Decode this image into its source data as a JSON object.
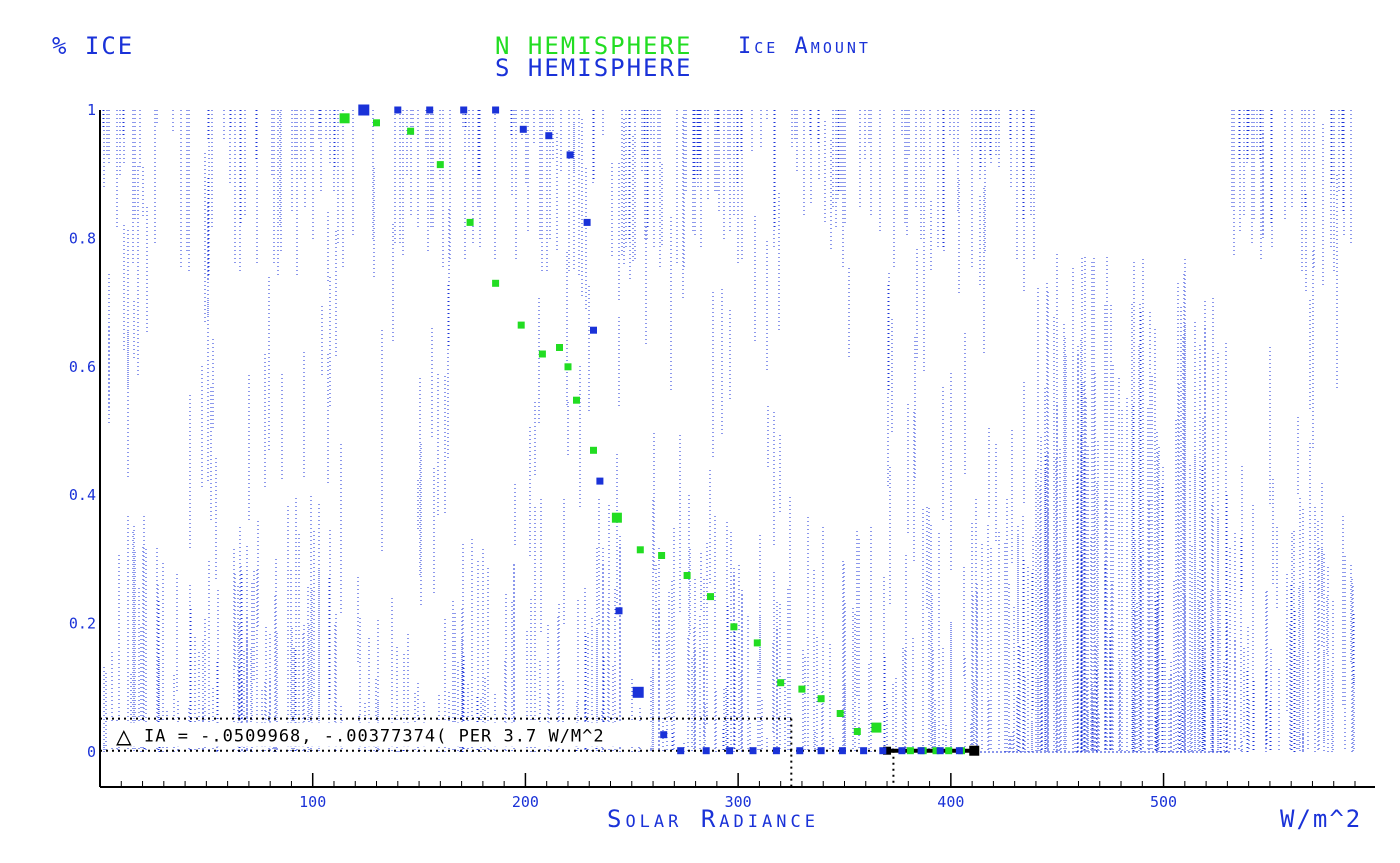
{
  "chart_data": {
    "type": "scatter",
    "title": "Ice Amount",
    "series_labels": [
      "N HEMISPHERE",
      "S HEMISPHERE"
    ],
    "ylabel": "% ICE",
    "xlabel": "Solar Radiance",
    "x_units": "W/m^2",
    "xlim": [
      0,
      590
    ],
    "ylim": [
      -0.05,
      1.0
    ],
    "x_ticks": [
      100,
      200,
      300,
      400,
      500
    ],
    "y_ticks": [
      0,
      0.2,
      0.4,
      0.6,
      0.8,
      1
    ],
    "y_tick_labels": [
      "0",
      "0.2",
      "0.4",
      "0.6",
      "0.8",
      "1"
    ],
    "colors": {
      "n_hemisphere": "#22dd22",
      "s_hemisphere": "#1a32d8",
      "axes": "#000000",
      "scatter": "#1a32d8"
    },
    "grid": false,
    "series": [
      {
        "name": "N HEMISPHERE",
        "color": "#22dd22",
        "points": [
          [
            115,
            0.987
          ],
          [
            130,
            0.98
          ],
          [
            146,
            0.967
          ],
          [
            160,
            0.915
          ],
          [
            174,
            0.825
          ],
          [
            186,
            0.73
          ],
          [
            198,
            0.665
          ],
          [
            208,
            0.62
          ],
          [
            216,
            0.63
          ],
          [
            220,
            0.6
          ],
          [
            224,
            0.548
          ],
          [
            232,
            0.47
          ],
          [
            243,
            0.365
          ],
          [
            254,
            0.315
          ],
          [
            264,
            0.306
          ],
          [
            276,
            0.275
          ],
          [
            287,
            0.242
          ],
          [
            298,
            0.195
          ],
          [
            309,
            0.17
          ],
          [
            320,
            0.108
          ],
          [
            330,
            0.098
          ],
          [
            339,
            0.083
          ],
          [
            348,
            0.06
          ],
          [
            356,
            0.032
          ],
          [
            365,
            0.038
          ],
          [
            381,
            0.002
          ],
          [
            387,
            0.002
          ],
          [
            393,
            0.002
          ],
          [
            399,
            0.002
          ],
          [
            405,
            0.002
          ]
        ]
      },
      {
        "name": "S HEMISPHERE",
        "color": "#1a32d8",
        "points": [
          [
            124,
            1.0
          ],
          [
            140,
            1.0
          ],
          [
            155,
            1.0
          ],
          [
            171,
            1.0
          ],
          [
            186,
            1.0
          ],
          [
            199,
            0.97
          ],
          [
            211,
            0.96
          ],
          [
            221,
            0.93
          ],
          [
            229,
            0.825
          ],
          [
            232,
            0.657
          ],
          [
            235,
            0.422
          ],
          [
            244,
            0.22
          ],
          [
            253,
            0.093
          ],
          [
            265,
            0.027
          ],
          [
            273,
            0.002
          ],
          [
            285,
            0.002
          ],
          [
            296,
            0.002
          ],
          [
            307,
            0.002
          ],
          [
            318,
            0.002
          ],
          [
            329,
            0.002
          ],
          [
            339,
            0.002
          ],
          [
            349,
            0.002
          ],
          [
            359,
            0.002
          ],
          [
            368,
            0.002
          ],
          [
            377,
            0.002
          ],
          [
            386,
            0.002
          ],
          [
            395,
            0.002
          ],
          [
            404,
            0.002
          ]
        ]
      }
    ],
    "fit_line": {
      "x": [
        370,
        411
      ],
      "y": [
        0.002,
        0.002
      ]
    },
    "delta_annotation": {
      "symbol": "△",
      "text": "IA = -.0509968, -.00377374( PER 3.7 W/M^2",
      "box_y": [
        0.002,
        0.052
      ],
      "box_x": [
        0,
        325
      ],
      "marker_x": [
        325,
        373
      ]
    }
  }
}
